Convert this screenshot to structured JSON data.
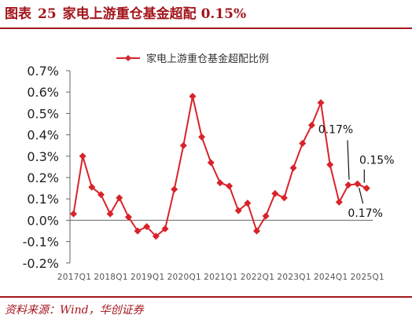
{
  "figure": {
    "label": "图表",
    "number": "25",
    "title": "家电上游重仓基金超配 0.15%"
  },
  "source": "资料来源：Wind，华创证券",
  "colors": {
    "accent": "#a3151c",
    "series": "#d8232a",
    "axis": "#666666"
  },
  "chart_data": {
    "type": "line",
    "series": [
      {
        "name": "家电上游重仓基金超配比例",
        "marker": "diamond",
        "values": [
          0.03,
          0.3,
          0.155,
          0.12,
          0.03,
          0.105,
          0.015,
          -0.05,
          -0.03,
          -0.075,
          -0.04,
          0.145,
          0.35,
          0.58,
          0.39,
          0.27,
          0.175,
          0.16,
          0.045,
          0.08,
          -0.05,
          0.02,
          0.125,
          0.105,
          0.245,
          0.36,
          0.445,
          0.55,
          0.26,
          0.085,
          0.165,
          0.17,
          0.15
        ]
      }
    ],
    "x_ticks": [
      "2017Q1",
      "2018Q1",
      "2019Q1",
      "2020Q1",
      "2021Q1",
      "2022Q1",
      "2023Q1",
      "2024Q1",
      "2025Q1"
    ],
    "y_ticks": [
      "0.7%",
      "0.6%",
      "0.5%",
      "0.4%",
      "0.3%",
      "0.2%",
      "0.1%",
      "0.0%",
      "-0.1%",
      "-0.2%"
    ],
    "ylim": [
      -0.2,
      0.7
    ],
    "unit": "%",
    "grid": false,
    "legend": "top",
    "annotations": [
      {
        "text": "0.17%",
        "point_index": 30,
        "placement": "above-left"
      },
      {
        "text": "0.15%",
        "point_index": 32,
        "placement": "above-right"
      },
      {
        "text": "0.17%",
        "point_index": 31,
        "placement": "below"
      }
    ]
  }
}
